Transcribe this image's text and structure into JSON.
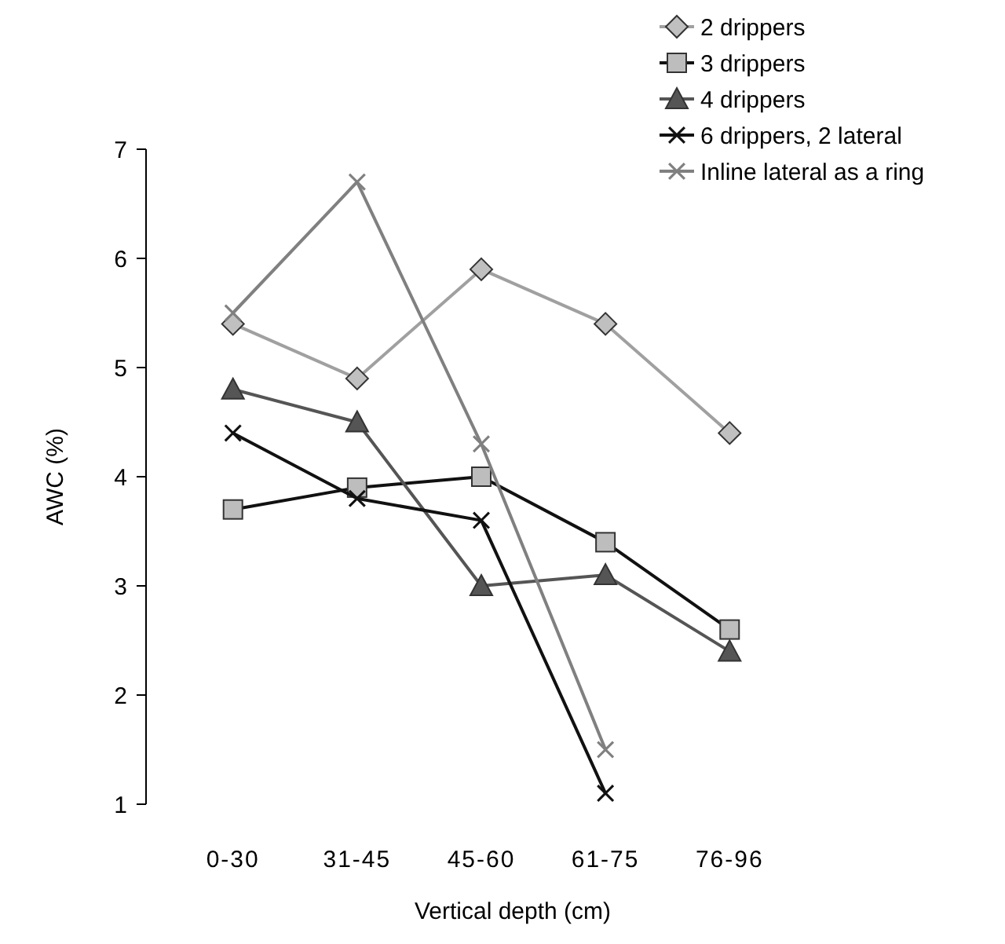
{
  "chart_data": {
    "type": "line",
    "xlabel": "Vertical depth (cm)",
    "ylabel": "AWC (%)",
    "categories": [
      "0-30",
      "31-45",
      "45-60",
      "61-75",
      "76-96"
    ],
    "ylim": [
      1,
      7
    ],
    "yticks": [
      1,
      2,
      3,
      4,
      5,
      6,
      7
    ],
    "grid": false,
    "legend": "top right",
    "line_style": "solid",
    "series": [
      {
        "name": "2 drippers",
        "color": "#a0a0a0",
        "marker": "diamond",
        "values": [
          5.4,
          4.9,
          5.9,
          5.4,
          4.4
        ]
      },
      {
        "name": "3 drippers",
        "color": "#111111",
        "marker": "square",
        "values": [
          3.7,
          3.9,
          4.0,
          3.4,
          2.6
        ]
      },
      {
        "name": "4 drippers",
        "color": "#555555",
        "marker": "triangle",
        "values": [
          4.8,
          4.5,
          3.0,
          3.1,
          2.4
        ]
      },
      {
        "name": "6 drippers, 2 lateral",
        "color": "#111111",
        "marker": "cross",
        "values": [
          4.4,
          3.8,
          3.6,
          1.1,
          null
        ]
      },
      {
        "name": "Inline lateral as a ring",
        "color": "#808080",
        "marker": "cross",
        "values": [
          5.5,
          6.7,
          4.3,
          1.5,
          null
        ]
      }
    ]
  }
}
